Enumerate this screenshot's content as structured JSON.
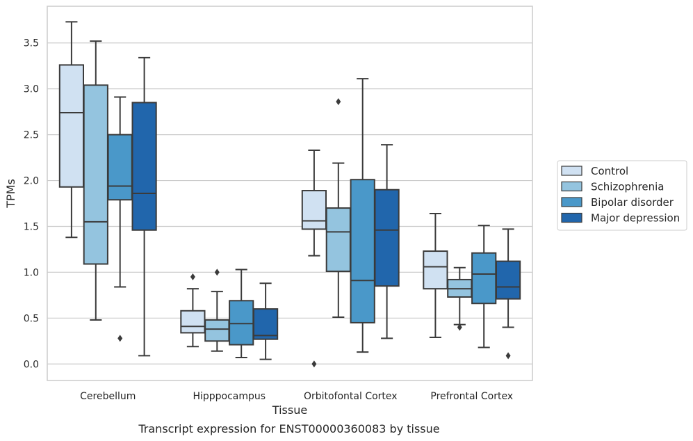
{
  "chart_data": {
    "type": "box",
    "title": "",
    "caption": "Transcript expression for ENST00000360083 by tissue",
    "xlabel": "Tissue",
    "ylabel": "TPMs",
    "ylim": [
      -0.18,
      3.9
    ],
    "yticks": [
      0.0,
      0.5,
      1.0,
      1.5,
      2.0,
      2.5,
      3.0,
      3.5
    ],
    "ytick_labels": [
      "0.0",
      "0.5",
      "1.0",
      "1.5",
      "2.0",
      "2.5",
      "3.0",
      "3.5"
    ],
    "grid": "horizontal",
    "legend_position": "right",
    "categories": [
      "Cerebellum",
      "Hipppocampus",
      "Orbitofontal Cortex",
      "Prefrontal Cortex"
    ],
    "series": [
      {
        "name": "Control",
        "color": "#d0e1f2",
        "boxes": [
          {
            "whislo": 1.38,
            "q1": 1.93,
            "med": 2.74,
            "q3": 3.26,
            "whishi": 3.73,
            "fliers": []
          },
          {
            "whislo": 0.19,
            "q1": 0.34,
            "med": 0.41,
            "q3": 0.58,
            "whishi": 0.82,
            "fliers": [
              0.95
            ]
          },
          {
            "whislo": 1.18,
            "q1": 1.47,
            "med": 1.56,
            "q3": 1.89,
            "whishi": 2.33,
            "fliers": [
              0.0
            ]
          },
          {
            "whislo": 0.29,
            "q1": 0.82,
            "med": 1.06,
            "q3": 1.23,
            "whishi": 1.64,
            "fliers": []
          }
        ]
      },
      {
        "name": "Schizophrenia",
        "color": "#94c4df",
        "boxes": [
          {
            "whislo": 0.48,
            "q1": 1.09,
            "med": 1.55,
            "q3": 3.04,
            "whishi": 3.52,
            "fliers": []
          },
          {
            "whislo": 0.14,
            "q1": 0.25,
            "med": 0.38,
            "q3": 0.48,
            "whishi": 0.79,
            "fliers": [
              1.0
            ]
          },
          {
            "whislo": 0.51,
            "q1": 1.01,
            "med": 1.44,
            "q3": 1.7,
            "whishi": 2.19,
            "fliers": [
              2.86
            ]
          },
          {
            "whislo": 0.43,
            "q1": 0.73,
            "med": 0.82,
            "q3": 0.92,
            "whishi": 1.05,
            "fliers": [
              0.4
            ]
          }
        ]
      },
      {
        "name": "Bipolar disorder",
        "color": "#4a98c9",
        "boxes": [
          {
            "whislo": 0.84,
            "q1": 1.79,
            "med": 1.94,
            "q3": 2.5,
            "whishi": 2.91,
            "fliers": [
              0.28
            ]
          },
          {
            "whislo": 0.07,
            "q1": 0.21,
            "med": 0.44,
            "q3": 0.69,
            "whishi": 1.03,
            "fliers": []
          },
          {
            "whislo": 0.13,
            "q1": 0.45,
            "med": 0.91,
            "q3": 2.01,
            "whishi": 3.11,
            "fliers": []
          },
          {
            "whislo": 0.18,
            "q1": 0.66,
            "med": 0.98,
            "q3": 1.21,
            "whishi": 1.51,
            "fliers": []
          }
        ]
      },
      {
        "name": "Major depression",
        "color": "#2166ac",
        "boxes": [
          {
            "whislo": 0.09,
            "q1": 1.46,
            "med": 1.86,
            "q3": 2.85,
            "whishi": 3.34,
            "fliers": []
          },
          {
            "whislo": 0.05,
            "q1": 0.27,
            "med": 0.31,
            "q3": 0.6,
            "whishi": 0.88,
            "fliers": []
          },
          {
            "whislo": 0.28,
            "q1": 0.85,
            "med": 1.46,
            "q3": 1.9,
            "whishi": 2.39,
            "fliers": []
          },
          {
            "whislo": 0.4,
            "q1": 0.71,
            "med": 0.84,
            "q3": 1.12,
            "whishi": 1.47,
            "fliers": [
              0.09
            ]
          }
        ]
      }
    ]
  }
}
